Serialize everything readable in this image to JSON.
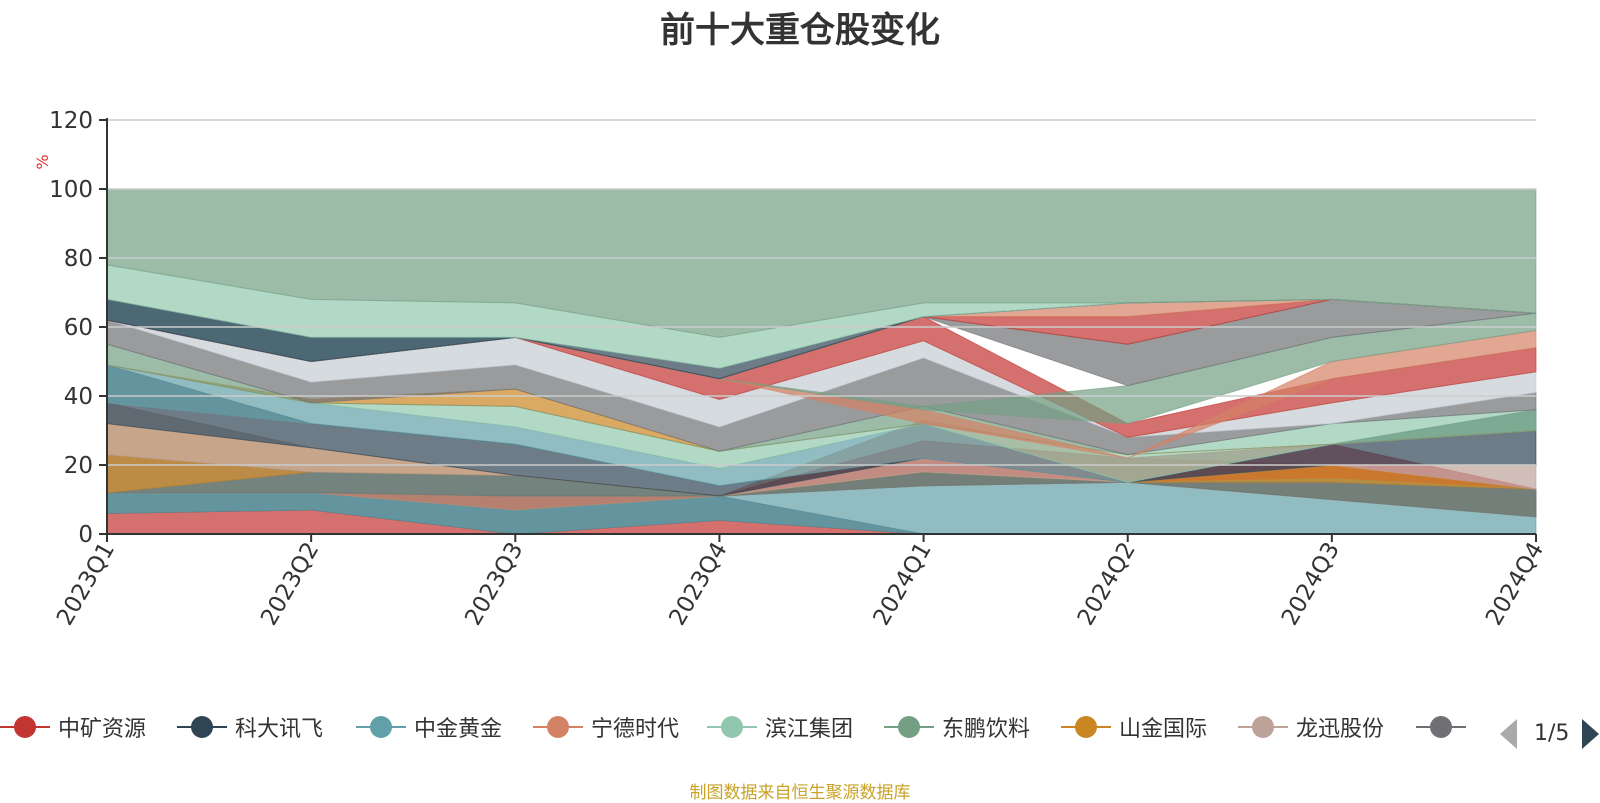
{
  "chart_data": {
    "type": "area",
    "title": "前十大重仓股变化",
    "ylabel": "%",
    "ylim": [
      0,
      120
    ],
    "yticks": [
      0,
      20,
      40,
      60,
      80,
      100,
      120
    ],
    "categories": [
      "2023Q1",
      "2023Q2",
      "2023Q3",
      "2023Q4",
      "2024Q1",
      "2024Q2",
      "2024Q3",
      "2024Q4"
    ],
    "grid": true,
    "legend_position": "bottom",
    "bands": [
      {
        "color": "#c23531",
        "values": [
          [
            0,
            6
          ],
          [
            0,
            7
          ],
          [
            0,
            0
          ],
          [
            0,
            4
          ],
          [
            0,
            0
          ],
          [
            0,
            0
          ],
          [
            0,
            0
          ],
          [
            0,
            0
          ]
        ]
      },
      {
        "color": "#2f4554",
        "values": [
          [
            6,
            12
          ],
          [
            7,
            12
          ],
          [
            0,
            11
          ],
          [
            4,
            11
          ],
          [
            0,
            0
          ],
          [
            0,
            0
          ],
          [
            0,
            0
          ],
          [
            0,
            0
          ]
        ]
      },
      {
        "color": "#61a0a8",
        "values": [
          [
            6,
            12
          ],
          [
            7,
            12
          ],
          [
            0,
            7
          ],
          [
            4,
            11
          ],
          [
            0,
            14
          ],
          [
            0,
            15
          ],
          [
            0,
            10
          ],
          [
            0,
            5
          ]
        ]
      },
      {
        "color": "#d48265",
        "values": [
          [
            12,
            12
          ],
          [
            12,
            12
          ],
          [
            7,
            11
          ],
          [
            11,
            11
          ],
          [
            14,
            33
          ],
          [
            15,
            22
          ],
          [
            10,
            20
          ],
          [
            5,
            13
          ]
        ]
      },
      {
        "color": "#c23531",
        "values": [
          [
            12,
            12
          ],
          [
            12,
            12
          ],
          [
            11,
            11
          ],
          [
            11,
            11
          ],
          [
            14,
            27
          ],
          [
            15,
            22
          ],
          [
            10,
            26
          ],
          [
            5,
            13
          ]
        ]
      },
      {
        "color": "#91c7ae",
        "values": [
          [
            12,
            12
          ],
          [
            12,
            18
          ],
          [
            11,
            17
          ],
          [
            11,
            11
          ],
          [
            14,
            18
          ],
          [
            15,
            15
          ],
          [
            10,
            16
          ],
          [
            5,
            13
          ]
        ]
      },
      {
        "color": "#749f83",
        "values": [
          [
            12,
            12
          ],
          [
            12,
            18
          ],
          [
            11,
            17
          ],
          [
            11,
            11
          ],
          [
            14,
            18
          ],
          [
            15,
            15
          ],
          [
            10,
            16
          ],
          [
            5,
            13
          ]
        ]
      },
      {
        "color": "#6e7074",
        "values": [
          [
            12,
            23
          ],
          [
            12,
            18
          ],
          [
            11,
            17
          ],
          [
            11,
            11
          ],
          [
            14,
            18
          ],
          [
            15,
            15
          ],
          [
            10,
            15
          ],
          [
            5,
            13
          ]
        ]
      },
      {
        "color": "#ca8622",
        "values": [
          [
            12,
            32
          ],
          [
            18,
            25
          ],
          [
            17,
            17
          ],
          [
            11,
            11
          ],
          [
            18,
            18
          ],
          [
            15,
            15
          ],
          [
            15,
            20
          ],
          [
            13,
            13
          ]
        ]
      },
      {
        "color": "#bda29a",
        "values": [
          [
            23,
            38
          ],
          [
            18,
            25
          ],
          [
            17,
            17
          ],
          [
            11,
            11
          ],
          [
            18,
            22
          ],
          [
            15,
            15
          ],
          [
            20,
            20
          ],
          [
            13,
            20
          ]
        ]
      },
      {
        "color": "#2f4554",
        "values": [
          [
            32,
            49
          ],
          [
            25,
            32
          ],
          [
            17,
            26
          ],
          [
            11,
            14
          ],
          [
            22,
            22
          ],
          [
            15,
            15
          ],
          [
            20,
            26
          ],
          [
            20,
            30
          ]
        ]
      },
      {
        "color": "#61a0a8",
        "values": [
          [
            38,
            49
          ],
          [
            32,
            38
          ],
          [
            26,
            31
          ],
          [
            14,
            19
          ],
          [
            22,
            32
          ],
          [
            15,
            15
          ],
          [
            26,
            26
          ],
          [
            30,
            36
          ]
        ]
      },
      {
        "color": "#91c7ae",
        "values": [
          [
            49,
            49
          ],
          [
            38,
            38
          ],
          [
            31,
            37
          ],
          [
            19,
            24
          ],
          [
            32,
            32
          ],
          [
            15,
            23
          ],
          [
            26,
            32
          ],
          [
            30,
            36
          ]
        ]
      },
      {
        "color": "#ca8622",
        "values": [
          [
            49,
            49
          ],
          [
            38,
            39
          ],
          [
            37,
            42
          ],
          [
            24,
            24
          ],
          [
            32,
            32
          ],
          [
            23,
            23
          ],
          [
            26,
            26
          ],
          [
            30,
            30
          ]
        ]
      },
      {
        "color": "#749f83",
        "values": [
          [
            49,
            55
          ],
          [
            38,
            38
          ],
          [
            37,
            37
          ],
          [
            24,
            24
          ],
          [
            32,
            37
          ],
          [
            23,
            23
          ],
          [
            26,
            26
          ],
          [
            30,
            36
          ]
        ]
      },
      {
        "color": "#6e7074",
        "values": [
          [
            55,
            62
          ],
          [
            38,
            44
          ],
          [
            42,
            49
          ],
          [
            24,
            31
          ],
          [
            37,
            51
          ],
          [
            23,
            28
          ],
          [
            32,
            32
          ],
          [
            36,
            41
          ]
        ]
      },
      {
        "color": "#c4ccd3",
        "values": [
          [
            62,
            62
          ],
          [
            44,
            50
          ],
          [
            49,
            57
          ],
          [
            31,
            39
          ],
          [
            51,
            56
          ],
          [
            28,
            28
          ],
          [
            32,
            38
          ],
          [
            41,
            47
          ]
        ]
      },
      {
        "color": "#c23531",
        "values": [
          [
            62,
            62
          ],
          [
            50,
            50
          ],
          [
            57,
            57
          ],
          [
            39,
            45
          ],
          [
            56,
            63
          ],
          [
            28,
            32
          ],
          [
            38,
            45
          ],
          [
            47,
            54
          ]
        ]
      },
      {
        "color": "#d48265",
        "values": [
          [
            62,
            62
          ],
          [
            50,
            50
          ],
          [
            57,
            57
          ],
          [
            45,
            45
          ],
          [
            32,
            36
          ],
          [
            22,
            22
          ],
          [
            45,
            50
          ],
          [
            54,
            59
          ]
        ]
      },
      {
        "color": "#749f83",
        "values": [
          [
            62,
            62
          ],
          [
            50,
            50
          ],
          [
            57,
            57
          ],
          [
            45,
            45
          ],
          [
            36,
            37
          ],
          [
            32,
            43
          ],
          [
            50,
            57
          ],
          [
            59,
            64
          ]
        ]
      },
      {
        "color": "#6e7074",
        "values": [
          [
            62,
            62
          ],
          [
            50,
            50
          ],
          [
            57,
            57
          ],
          [
            45,
            45
          ],
          [
            63,
            63
          ],
          [
            43,
            55
          ],
          [
            57,
            68
          ],
          [
            64,
            64
          ]
        ]
      },
      {
        "color": "#c23531",
        "values": [
          [
            62,
            62
          ],
          [
            50,
            50
          ],
          [
            57,
            57
          ],
          [
            45,
            45
          ],
          [
            63,
            63
          ],
          [
            55,
            63
          ],
          [
            68,
            68
          ],
          [
            64,
            64
          ]
        ]
      },
      {
        "color": "#d48265",
        "values": [
          [
            62,
            62
          ],
          [
            50,
            50
          ],
          [
            57,
            57
          ],
          [
            45,
            45
          ],
          [
            63,
            63
          ],
          [
            63,
            67
          ],
          [
            68,
            68
          ],
          [
            64,
            64
          ]
        ]
      },
      {
        "color": "#61a0a8",
        "values": [
          [
            62,
            68
          ],
          [
            50,
            57
          ],
          [
            57,
            57
          ],
          [
            45,
            45
          ],
          [
            63,
            63
          ],
          [
            67,
            67
          ],
          [
            68,
            68
          ],
          [
            64,
            64
          ]
        ]
      },
      {
        "color": "#2f4554",
        "values": [
          [
            62,
            68
          ],
          [
            50,
            57
          ],
          [
            57,
            57
          ],
          [
            45,
            48
          ],
          [
            63,
            63
          ],
          [
            67,
            67
          ],
          [
            68,
            68
          ],
          [
            64,
            64
          ]
        ]
      },
      {
        "color": "#91c7ae",
        "values": [
          [
            68,
            78
          ],
          [
            57,
            68
          ],
          [
            57,
            67
          ],
          [
            48,
            57
          ],
          [
            63,
            67
          ],
          [
            67,
            67
          ],
          [
            68,
            68
          ],
          [
            64,
            64
          ]
        ]
      },
      {
        "color": "#749f83",
        "values": [
          [
            78,
            100
          ],
          [
            68,
            100
          ],
          [
            67,
            100
          ],
          [
            57,
            100
          ],
          [
            67,
            100
          ],
          [
            67,
            100
          ],
          [
            68,
            100
          ],
          [
            64,
            100
          ]
        ]
      }
    ],
    "legend": [
      {
        "name": "中矿资源",
        "color": "#c23531"
      },
      {
        "name": "科大讯飞",
        "color": "#2f4554"
      },
      {
        "name": "中金黄金",
        "color": "#61a0a8"
      },
      {
        "name": "宁德时代",
        "color": "#d48265"
      },
      {
        "name": "滨江集团",
        "color": "#91c7ae"
      },
      {
        "name": "东鹏饮料",
        "color": "#749f83"
      },
      {
        "name": "山金国际",
        "color": "#ca8622"
      },
      {
        "name": "龙迅股份",
        "color": "#bda29a"
      },
      {
        "name": "",
        "color": "#6e7074"
      }
    ],
    "legend_page": "1/5"
  },
  "source_note": "制图数据来自恒生聚源数据库"
}
